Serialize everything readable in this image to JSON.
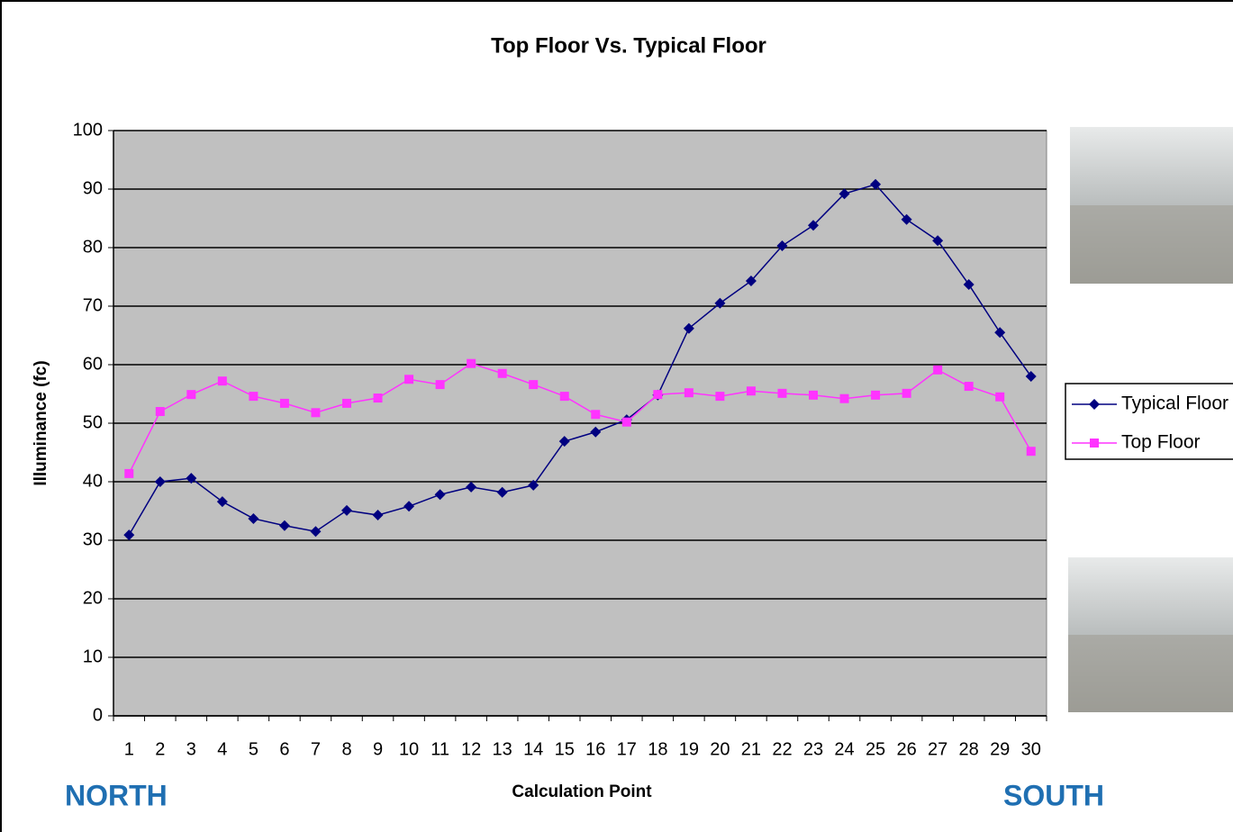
{
  "chart_data": {
    "type": "line",
    "title": "Top Floor Vs. Typical Floor",
    "x_label": "Calculation Point",
    "y_label": "Illuminance (fc)",
    "annotations": [
      "NORTH",
      "SOUTH"
    ],
    "categories": [
      "1",
      "2",
      "3",
      "4",
      "5",
      "6",
      "7",
      "8",
      "9",
      "10",
      "11",
      "12",
      "13",
      "14",
      "15",
      "16",
      "17",
      "18",
      "19",
      "20",
      "21",
      "22",
      "23",
      "24",
      "25",
      "26",
      "27",
      "28",
      "29",
      "30"
    ],
    "series": [
      {
        "name": "Typical Floor",
        "color": "#000080",
        "marker": "diamond",
        "values": [
          30.9,
          40.0,
          40.6,
          36.6,
          33.7,
          32.5,
          31.5,
          35.1,
          34.3,
          35.8,
          37.8,
          39.1,
          38.2,
          39.4,
          46.9,
          48.5,
          50.6,
          54.8,
          66.2,
          70.5,
          74.3,
          80.3,
          83.8,
          89.2,
          90.8,
          84.8,
          81.2,
          73.7,
          65.5,
          58.0
        ]
      },
      {
        "name": "Top Floor",
        "color": "#ff33ff",
        "marker": "square",
        "values": [
          41.4,
          52.0,
          54.9,
          57.2,
          54.6,
          53.4,
          51.8,
          53.4,
          54.3,
          57.5,
          56.6,
          60.2,
          58.5,
          56.6,
          54.6,
          51.5,
          50.2,
          54.9,
          55.2,
          54.6,
          55.5,
          55.1,
          54.8,
          54.2,
          54.8,
          55.1,
          59.1,
          56.3,
          54.5,
          45.2
        ]
      }
    ],
    "ylim": [
      0,
      100
    ],
    "yticks": [
      0,
      10,
      20,
      30,
      40,
      50,
      60,
      70,
      80,
      90,
      100
    ],
    "grid": true,
    "plot_background": "#c0c0c0",
    "legend": "right"
  }
}
